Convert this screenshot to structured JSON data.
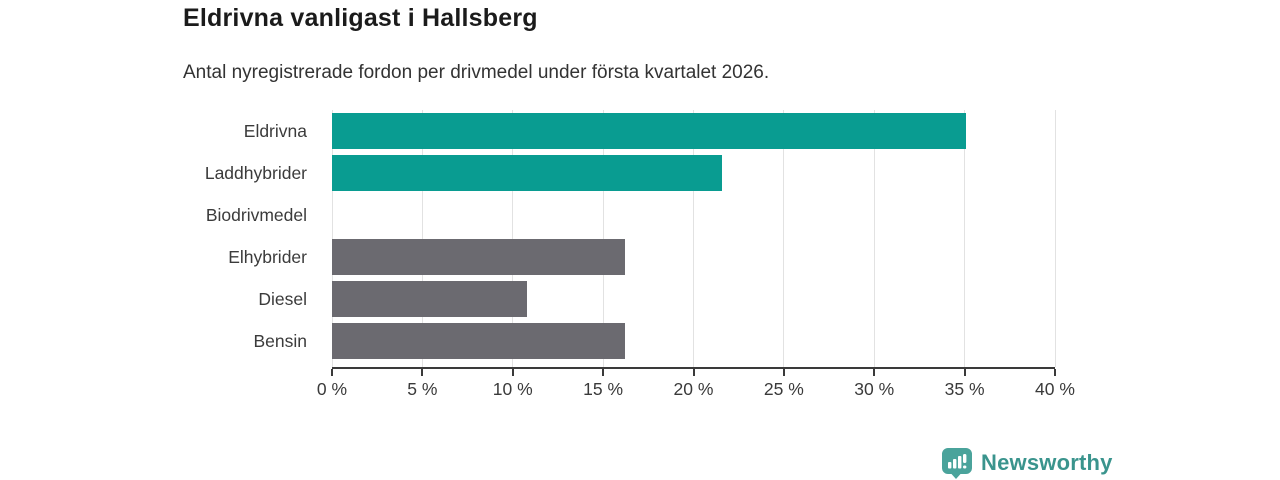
{
  "chart_data": {
    "type": "bar",
    "orientation": "horizontal",
    "title": "Eldrivna vanligast i Hallsberg",
    "subtitle": "Antal nyregistrerade fordon per drivmedel under första kvartalet 2026.",
    "categories": [
      "Eldrivna",
      "Laddhybrider",
      "Biodrivmedel",
      "Elhybrider",
      "Diesel",
      "Bensin"
    ],
    "values": [
      35.1,
      21.6,
      0,
      16.2,
      10.8,
      16.2
    ],
    "unit": "%",
    "xlim": [
      0,
      40
    ],
    "tick_values": [
      0,
      5,
      10,
      15,
      20,
      25,
      30,
      35,
      40
    ],
    "tick_labels": [
      "0 %",
      "5 %",
      "10 %",
      "15 %",
      "20 %",
      "25 %",
      "30 %",
      "35 %",
      "40 %"
    ],
    "bar_colors": [
      "#099c91",
      "#099c91",
      "#6b6a70",
      "#6b6a70",
      "#6b6a70",
      "#6b6a70"
    ],
    "highlight_color": "#099c91",
    "default_color": "#6b6a70",
    "grid": true,
    "gridline_color": "#e2e2e2",
    "axis_color": "#3a3a3a",
    "legend": false,
    "xlabel": "",
    "ylabel": ""
  },
  "branding": {
    "logo_text": "Newsworthy",
    "logo_icon": "newsworthy-chart-bubble-icon",
    "icon_color": "#4aa39b",
    "text_color": "#3a948d"
  }
}
